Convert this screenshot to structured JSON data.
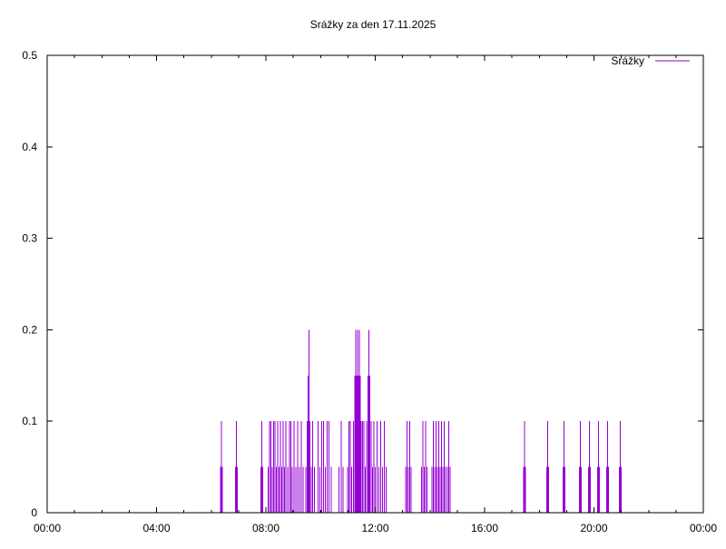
{
  "chart_data": {
    "type": "line",
    "title": "Srážky za den 17.11.2025",
    "xlabel": "",
    "ylabel": "",
    "x_unit": "time of day",
    "xlim": [
      "00:00",
      "24:00"
    ],
    "ylim": [
      0,
      0.5
    ],
    "x_ticks": [
      "00:00",
      "04:00",
      "08:00",
      "12:00",
      "16:00",
      "20:00",
      "00:00"
    ],
    "y_ticks": [
      "0",
      "0.1",
      "0.2",
      "0.3",
      "0.4",
      "0.5"
    ],
    "grid": false,
    "legend_position": "top-right",
    "series": [
      {
        "name": "Srážky",
        "color": "#9400d3",
        "points": [
          [
            "06:20",
            0.05
          ],
          [
            "06:22",
            0.1
          ],
          [
            "06:24",
            0.05
          ],
          [
            "06:53",
            0.05
          ],
          [
            "06:55",
            0.1
          ],
          [
            "06:57",
            0.05
          ],
          [
            "07:49",
            0.05
          ],
          [
            "07:51",
            0.1
          ],
          [
            "07:53",
            0.05
          ],
          [
            "08:05",
            0.05
          ],
          [
            "08:08",
            0.1
          ],
          [
            "08:11",
            0.1
          ],
          [
            "08:14",
            0.05
          ],
          [
            "08:17",
            0.1
          ],
          [
            "08:20",
            0.1
          ],
          [
            "08:23",
            0.05
          ],
          [
            "08:26",
            0.1
          ],
          [
            "08:29",
            0.05
          ],
          [
            "08:32",
            0.1
          ],
          [
            "08:35",
            0.05
          ],
          [
            "08:38",
            0.1
          ],
          [
            "08:41",
            0.05
          ],
          [
            "08:44",
            0.1
          ],
          [
            "08:48",
            0.05
          ],
          [
            "08:52",
            0.1
          ],
          [
            "08:55",
            0.1
          ],
          [
            "08:58",
            0.05
          ],
          [
            "09:02",
            0.1
          ],
          [
            "09:06",
            0.05
          ],
          [
            "09:10",
            0.1
          ],
          [
            "09:14",
            0.05
          ],
          [
            "09:18",
            0.1
          ],
          [
            "09:22",
            0.05
          ],
          [
            "09:28",
            0.05
          ],
          [
            "09:31",
            0.1
          ],
          [
            "09:33",
            0.15
          ],
          [
            "09:35",
            0.2
          ],
          [
            "09:37",
            0.1
          ],
          [
            "09:40",
            0.05
          ],
          [
            "09:43",
            0.1
          ],
          [
            "09:47",
            0.05
          ],
          [
            "09:55",
            0.1
          ],
          [
            "09:58",
            0.05
          ],
          [
            "10:02",
            0.1
          ],
          [
            "10:06",
            0.1
          ],
          [
            "10:10",
            0.05
          ],
          [
            "10:14",
            0.1
          ],
          [
            "10:18",
            0.1
          ],
          [
            "10:23",
            0.05
          ],
          [
            "10:40",
            0.05
          ],
          [
            "10:45",
            0.1
          ],
          [
            "10:49",
            0.05
          ],
          [
            "10:59",
            0.05
          ],
          [
            "11:02",
            0.1
          ],
          [
            "11:05",
            0.1
          ],
          [
            "11:08",
            0.05
          ],
          [
            "11:12",
            0.1
          ],
          [
            "11:15",
            0.15
          ],
          [
            "11:17",
            0.2
          ],
          [
            "11:19",
            0.15
          ],
          [
            "11:21",
            0.2
          ],
          [
            "11:23",
            0.15
          ],
          [
            "11:25",
            0.2
          ],
          [
            "11:27",
            0.15
          ],
          [
            "11:29",
            0.1
          ],
          [
            "11:32",
            0.1
          ],
          [
            "11:35",
            0.1
          ],
          [
            "11:38",
            0.05
          ],
          [
            "11:41",
            0.1
          ],
          [
            "11:44",
            0.15
          ],
          [
            "11:46",
            0.2
          ],
          [
            "11:48",
            0.15
          ],
          [
            "11:51",
            0.1
          ],
          [
            "11:54",
            0.05
          ],
          [
            "11:57",
            0.1
          ],
          [
            "12:00",
            0.05
          ],
          [
            "12:04",
            0.1
          ],
          [
            "12:08",
            0.05
          ],
          [
            "12:12",
            0.1
          ],
          [
            "12:16",
            0.05
          ],
          [
            "12:20",
            0.1
          ],
          [
            "12:24",
            0.05
          ],
          [
            "13:07",
            0.05
          ],
          [
            "13:10",
            0.1
          ],
          [
            "13:13",
            0.05
          ],
          [
            "13:16",
            0.1
          ],
          [
            "13:19",
            0.05
          ],
          [
            "13:42",
            0.05
          ],
          [
            "13:45",
            0.1
          ],
          [
            "13:48",
            0.05
          ],
          [
            "13:51",
            0.1
          ],
          [
            "13:54",
            0.05
          ],
          [
            "14:04",
            0.05
          ],
          [
            "14:07",
            0.1
          ],
          [
            "14:10",
            0.05
          ],
          [
            "14:13",
            0.1
          ],
          [
            "14:16",
            0.05
          ],
          [
            "14:19",
            0.1
          ],
          [
            "14:22",
            0.05
          ],
          [
            "14:25",
            0.1
          ],
          [
            "14:28",
            0.05
          ],
          [
            "14:31",
            0.1
          ],
          [
            "14:34",
            0.05
          ],
          [
            "14:38",
            0.05
          ],
          [
            "14:41",
            0.1
          ],
          [
            "14:44",
            0.05
          ],
          [
            "17:26",
            0.05
          ],
          [
            "17:28",
            0.1
          ],
          [
            "17:30",
            0.05
          ],
          [
            "18:16",
            0.05
          ],
          [
            "18:18",
            0.1
          ],
          [
            "18:20",
            0.05
          ],
          [
            "18:52",
            0.05
          ],
          [
            "18:54",
            0.1
          ],
          [
            "18:56",
            0.05
          ],
          [
            "19:28",
            0.05
          ],
          [
            "19:30",
            0.1
          ],
          [
            "19:32",
            0.05
          ],
          [
            "19:48",
            0.05
          ],
          [
            "19:50",
            0.1
          ],
          [
            "19:52",
            0.05
          ],
          [
            "20:08",
            0.05
          ],
          [
            "20:10",
            0.1
          ],
          [
            "20:12",
            0.05
          ],
          [
            "20:28",
            0.05
          ],
          [
            "20:30",
            0.1
          ],
          [
            "20:32",
            0.05
          ],
          [
            "20:56",
            0.05
          ],
          [
            "20:58",
            0.1
          ],
          [
            "21:00",
            0.05
          ]
        ]
      }
    ]
  }
}
